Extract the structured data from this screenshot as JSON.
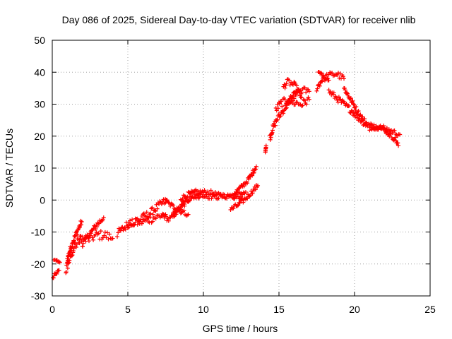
{
  "chart_data": {
    "type": "scatter",
    "title": "Day 086 of 2025, Sidereal Day-to-day VTEC variation (SDTVAR) for receiver nlib",
    "xlabel": "GPS time / hours",
    "ylabel": "SDTVAR / TECUs",
    "xlim": [
      0,
      25
    ],
    "ylim": [
      -30,
      50
    ],
    "xticks": [
      0,
      5,
      10,
      15,
      20,
      25
    ],
    "yticks": [
      -30,
      -20,
      -10,
      0,
      10,
      20,
      30,
      40,
      50
    ],
    "grid": true,
    "marker": "+",
    "series_color": "#ff0000",
    "segments": [
      {
        "name": "arc-01",
        "x": [
          0.05,
          0.15,
          0.3,
          0.45
        ],
        "y": [
          -24.5,
          -23.5,
          -22.8,
          -22.0
        ],
        "band": 1.0
      },
      {
        "name": "arc-02",
        "x": [
          0.1,
          0.25,
          0.5
        ],
        "y": [
          -19.0,
          -18.8,
          -19.5
        ],
        "band": 0.8
      },
      {
        "name": "arc-03",
        "x": [
          0.9,
          1.0,
          1.2,
          1.5,
          1.8,
          2.0
        ],
        "y": [
          -22.0,
          -20.5,
          -17.5,
          -14.5,
          -12.5,
          -11.5
        ],
        "band": 3.0
      },
      {
        "name": "arc-04",
        "x": [
          1.0,
          1.25,
          1.5,
          1.75,
          1.95
        ],
        "y": [
          -18.5,
          -14.5,
          -11.5,
          -8.8,
          -6.8
        ],
        "band": 2.0
      },
      {
        "name": "arc-05",
        "x": [
          1.8,
          2.5,
          3.0,
          3.5,
          4.0
        ],
        "y": [
          -13.5,
          -12.0,
          -11.0,
          -11.0,
          -12.0
        ],
        "band": 3.0
      },
      {
        "name": "arc-06",
        "x": [
          2.0,
          2.5,
          3.0,
          3.4
        ],
        "y": [
          -13.5,
          -10.5,
          -7.5,
          -5.5
        ],
        "band": 2.0
      },
      {
        "name": "arc-07",
        "x": [
          4.3,
          4.7,
          5.0,
          5.5,
          6.0
        ],
        "y": [
          -10.5,
          -9.0,
          -7.5,
          -6.5,
          -6.0
        ],
        "band": 2.5
      },
      {
        "name": "arc-08",
        "x": [
          5.0,
          6.0,
          7.0,
          7.5
        ],
        "y": [
          -7.5,
          -6.8,
          -5.2,
          -4.5
        ],
        "band": 2.5
      },
      {
        "name": "arc-09",
        "x": [
          6.0,
          6.5,
          7.0,
          7.3,
          7.6
        ],
        "y": [
          -5.5,
          -4.0,
          -2.0,
          -1.0,
          0.0
        ],
        "band": 2.5
      },
      {
        "name": "arc-10",
        "x": [
          7.3,
          7.7,
          8.0,
          8.3
        ],
        "y": [
          -4.5,
          -6.2,
          -5.0,
          -3.0
        ],
        "band": 1.5
      },
      {
        "name": "arc-11",
        "x": [
          7.5,
          8.0,
          8.5,
          9.0
        ],
        "y": [
          -0.5,
          -2.0,
          -3.5,
          -4.5
        ],
        "band": 1.5
      },
      {
        "name": "arc-12",
        "x": [
          8.0,
          8.5,
          9.0,
          9.5,
          10.0
        ],
        "y": [
          -4.5,
          -2.0,
          0.5,
          1.5,
          1.8
        ],
        "band": 2.5
      },
      {
        "name": "arc-13",
        "x": [
          8.5,
          9.0,
          9.5,
          10.0,
          10.5,
          11.0,
          12.0,
          12.5
        ],
        "y": [
          0.5,
          1.8,
          2.5,
          2.5,
          2.3,
          1.5,
          1.0,
          1.0
        ],
        "band": 1.5
      },
      {
        "name": "arc-14",
        "x": [
          8.3,
          8.8,
          9.3,
          9.8
        ],
        "y": [
          -3.0,
          -0.5,
          0.8,
          1.2
        ],
        "band": 1.2
      },
      {
        "name": "arc-15",
        "x": [
          10.0,
          11.0,
          12.0,
          12.8
        ],
        "y": [
          1.2,
          1.0,
          1.5,
          2.5
        ],
        "band": 1.5
      },
      {
        "name": "arc-16",
        "x": [
          11.8,
          12.3,
          12.8,
          13.3,
          13.6
        ],
        "y": [
          -3.0,
          -1.5,
          0.5,
          3.0,
          4.5
        ],
        "band": 1.5
      },
      {
        "name": "arc-17",
        "x": [
          12.0,
          12.5,
          13.0,
          13.5
        ],
        "y": [
          2.0,
          4.0,
          6.5,
          10.5
        ],
        "band": 1.5
      },
      {
        "name": "arc-18",
        "x": [
          14.1,
          14.15
        ],
        "y": [
          15.0,
          17.0
        ],
        "band": 0.3
      },
      {
        "name": "arc-19",
        "x": [
          14.4,
          14.6,
          14.9,
          15.2,
          15.5,
          15.8,
          16.2
        ],
        "y": [
          19.5,
          22.5,
          25.5,
          27.5,
          29.5,
          31.5,
          33.5
        ],
        "band": 2.0
      },
      {
        "name": "arc-20",
        "x": [
          14.8,
          15.2,
          15.6,
          16.0,
          16.5,
          17.0
        ],
        "y": [
          28.5,
          30.5,
          31.0,
          30.5,
          30.0,
          31.5
        ],
        "band": 2.5
      },
      {
        "name": "arc-21",
        "x": [
          15.3,
          15.6,
          16.0,
          16.3,
          16.5
        ],
        "y": [
          35.5,
          37.0,
          36.0,
          34.0,
          32.0
        ],
        "band": 2.0
      },
      {
        "name": "arc-22",
        "x": [
          15.5,
          16.0,
          16.5,
          17.0
        ],
        "y": [
          30.0,
          33.0,
          34.5,
          34.0
        ],
        "band": 2.0
      },
      {
        "name": "arc-23",
        "x": [
          17.5,
          17.9,
          18.3,
          18.8,
          19.3
        ],
        "y": [
          35.0,
          38.0,
          39.0,
          39.5,
          38.0
        ],
        "band": 2.0
      },
      {
        "name": "arc-24",
        "x": [
          17.6,
          18.0,
          18.3
        ],
        "y": [
          40.0,
          38.5,
          37.5
        ],
        "band": 1.0
      },
      {
        "name": "arc-25",
        "x": [
          18.3,
          18.8,
          19.3,
          19.8,
          20.3,
          20.8
        ],
        "y": [
          34.0,
          32.0,
          30.0,
          28.0,
          25.5,
          23.5
        ],
        "band": 2.0
      },
      {
        "name": "arc-26",
        "x": [
          19.3,
          19.8,
          20.3,
          20.8,
          21.5,
          22.3
        ],
        "y": [
          35.0,
          31.0,
          27.0,
          24.0,
          22.5,
          21.5
        ],
        "band": 1.5
      },
      {
        "name": "arc-27",
        "x": [
          21.0,
          21.5,
          22.0,
          22.3,
          22.7,
          22.9
        ],
        "y": [
          23.5,
          23.0,
          22.0,
          20.5,
          19.0,
          17.0
        ],
        "band": 1.5
      },
      {
        "name": "arc-28",
        "x": [
          21.0,
          21.5,
          22.0,
          22.5,
          23.0
        ],
        "y": [
          22.0,
          22.8,
          22.5,
          21.5,
          20.5
        ],
        "band": 1.5
      }
    ]
  }
}
